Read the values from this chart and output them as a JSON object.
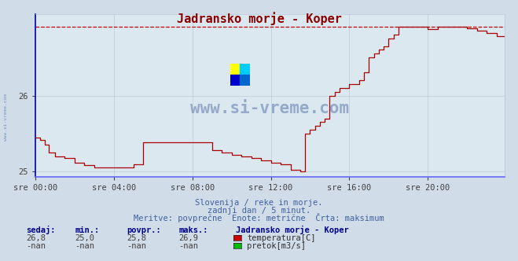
{
  "title": "Jadransko morje - Koper",
  "title_color": "#8b0000",
  "background_color": "#d0dce8",
  "plot_bg_color": "#dce8f0",
  "grid_color": "#b8c8d8",
  "xlabel_ticks": [
    "sre 00:00",
    "sre 04:00",
    "sre 08:00",
    "sre 12:00",
    "sre 16:00",
    "sre 20:00"
  ],
  "ylim_min": 24.93,
  "ylim_max": 27.07,
  "xlim_max": 287,
  "tick_positions_x": [
    0,
    48,
    96,
    144,
    192,
    240
  ],
  "yticks": [
    25.0,
    26.0
  ],
  "ytick_labels": [
    "25",
    "26"
  ],
  "subtitle1": "Slovenija / reke in morje.",
  "subtitle2": "zadnji dan / 5 minut.",
  "subtitle3": "Meritve: povprečne  Enote: metrične  Črta: maksimum",
  "subtitle_color": "#4060a0",
  "stat_label_color": "#00008b",
  "stats_labels": [
    "sedaj:",
    "min.:",
    "povpr.:",
    "maks.:"
  ],
  "stats_values_row1": [
    "26,8",
    "25,0",
    "25,8",
    "26,9"
  ],
  "stats_values_row2": [
    "-nan",
    "-nan",
    "-nan",
    "-nan"
  ],
  "legend_title": "Jadransko morje - Koper",
  "legend_items": [
    {
      "label": "temperatura[C]",
      "color": "#cc0000"
    },
    {
      "label": "pretok[m3/s]",
      "color": "#00bb00"
    }
  ],
  "watermark_text": "www.si-vreme.com",
  "watermark_color": "#4060a0",
  "line_color": "#aa0000",
  "dashed_line_color": "#cc0000",
  "dashed_line_y": 26.9,
  "axis_color": "#6666ff",
  "left_spine_color": "#0000bb",
  "logo_colors": [
    "#ffff00",
    "#00ccff",
    "#0000cc",
    "#0000cc"
  ]
}
